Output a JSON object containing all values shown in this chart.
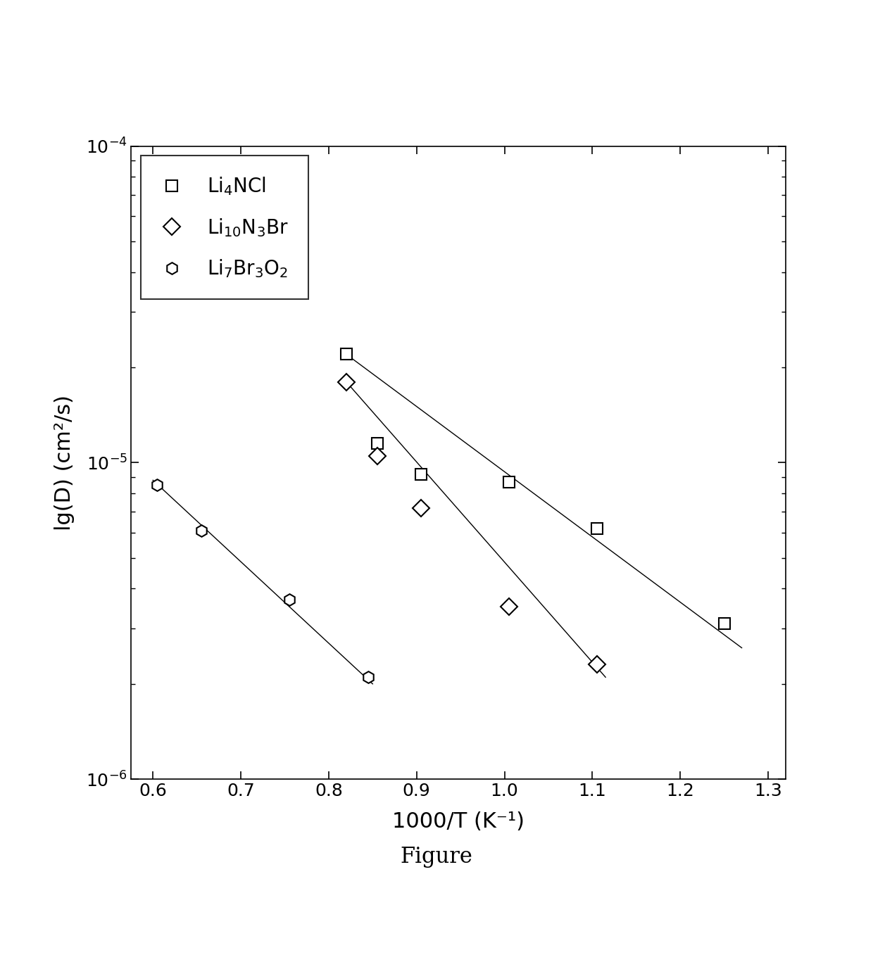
{
  "xlabel": "1000/T (K⁻¹)",
  "ylabel": "lg(D) (cm²/s)",
  "figure_label": "Figure",
  "xlim": [
    0.575,
    1.32
  ],
  "ylim_log": [
    1e-06,
    0.0001
  ],
  "xticks": [
    0.6,
    0.7,
    0.8,
    0.9,
    1.0,
    1.1,
    1.2,
    1.3
  ],
  "series": [
    {
      "label": "Li$_4$NCl",
      "marker": "s",
      "markersize": 12,
      "x": [
        0.82,
        0.855,
        0.905,
        1.005,
        1.105,
        1.25
      ],
      "y": [
        2.2e-05,
        1.15e-05,
        9.2e-06,
        8.7e-06,
        6.2e-06,
        3.1e-06
      ],
      "fit_x": [
        0.82,
        1.27
      ],
      "fit_y": [
        2.2e-05,
        2.6e-06
      ]
    },
    {
      "label": "Li$_{10}$N$_3$Br",
      "marker": "D",
      "markersize": 12,
      "x": [
        0.82,
        0.855,
        0.905,
        1.005,
        1.105
      ],
      "y": [
        1.8e-05,
        1.05e-05,
        7.2e-06,
        3.5e-06,
        2.3e-06
      ],
      "fit_x": [
        0.82,
        1.115
      ],
      "fit_y": [
        1.8e-05,
        2.1e-06
      ]
    },
    {
      "label": "Li$_7$Br$_3$O$_2$",
      "marker": "h",
      "markersize": 12,
      "x": [
        0.605,
        0.655,
        0.755,
        0.845
      ],
      "y": [
        8.5e-06,
        6.1e-06,
        3.7e-06,
        2.1e-06
      ],
      "fit_x": [
        0.6,
        0.85
      ],
      "fit_y": [
        8.8e-06,
        2e-06
      ]
    }
  ],
  "background_color": "#ffffff",
  "font_size": 20,
  "tick_font_size": 18,
  "label_font_size": 22,
  "figsize": [
    12.4,
    13.84
  ],
  "dpi": 100
}
